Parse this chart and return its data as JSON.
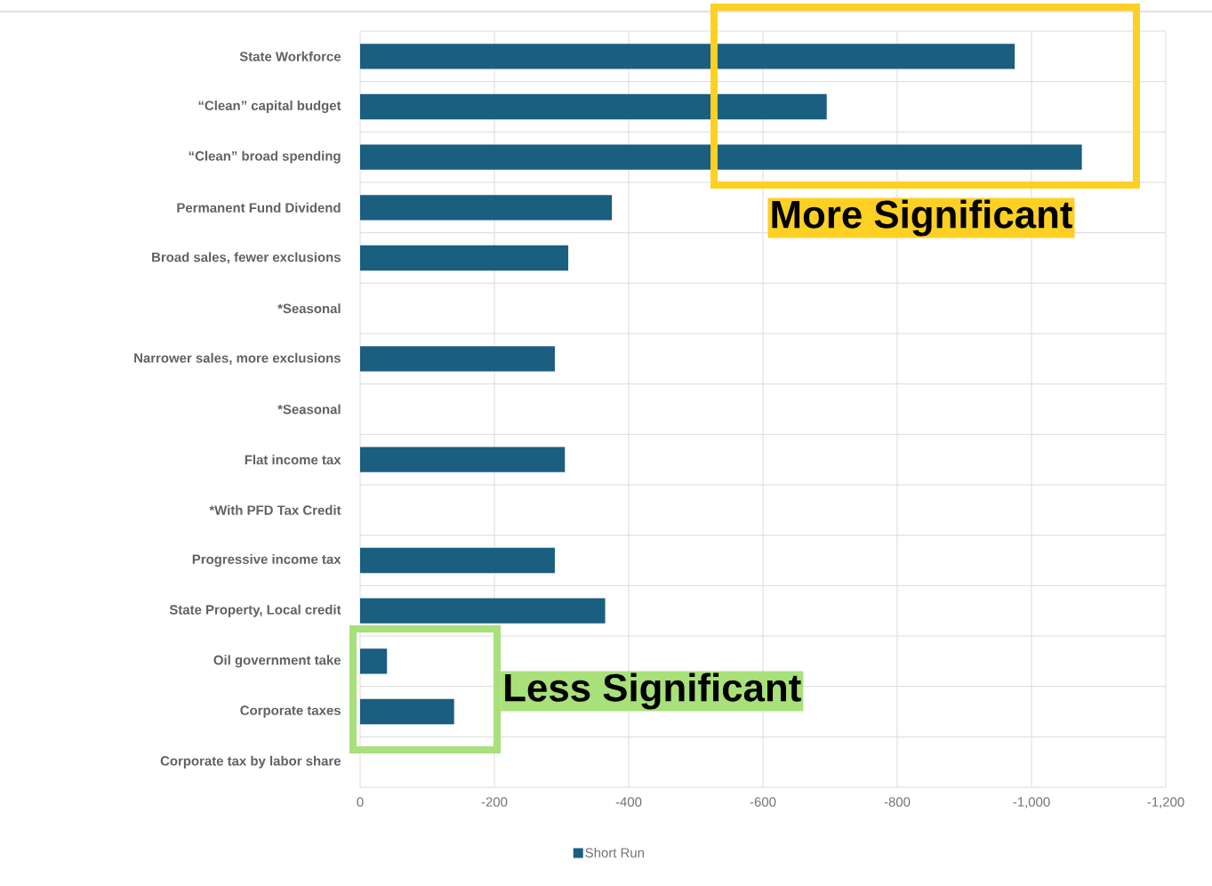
{
  "chart_data": {
    "type": "bar",
    "orientation": "horizontal",
    "categories": [
      "State Workforce",
      "“Clean” capital budget",
      "“Clean” broad spending",
      "Permanent Fund Dividend",
      "Broad sales, fewer exclusions",
      "*Seasonal",
      "Narrower sales, more exclusions",
      "*Seasonal",
      "Flat income tax",
      "*With PFD Tax Credit",
      "Progressive income tax",
      "State Property, Local credit",
      "Oil government take",
      "Corporate taxes",
      "Corporate tax by labor share"
    ],
    "series": [
      {
        "name": "Short Run",
        "color": "#1a5e80",
        "values": [
          -975,
          -695,
          -1075,
          -375,
          -310,
          null,
          -290,
          null,
          -305,
          null,
          -290,
          -365,
          -40,
          -140,
          null
        ]
      }
    ],
    "xlim": [
      0,
      -1200
    ],
    "xticks": [
      0,
      -200,
      -400,
      -600,
      -800,
      {
        "value": -1000,
        "label": "-1,000"
      },
      {
        "value": -1200,
        "label": "-1,200"
      }
    ],
    "grid": true,
    "legend": "bottom",
    "annotations": [
      "More Significant",
      "Less Significant"
    ]
  }
}
